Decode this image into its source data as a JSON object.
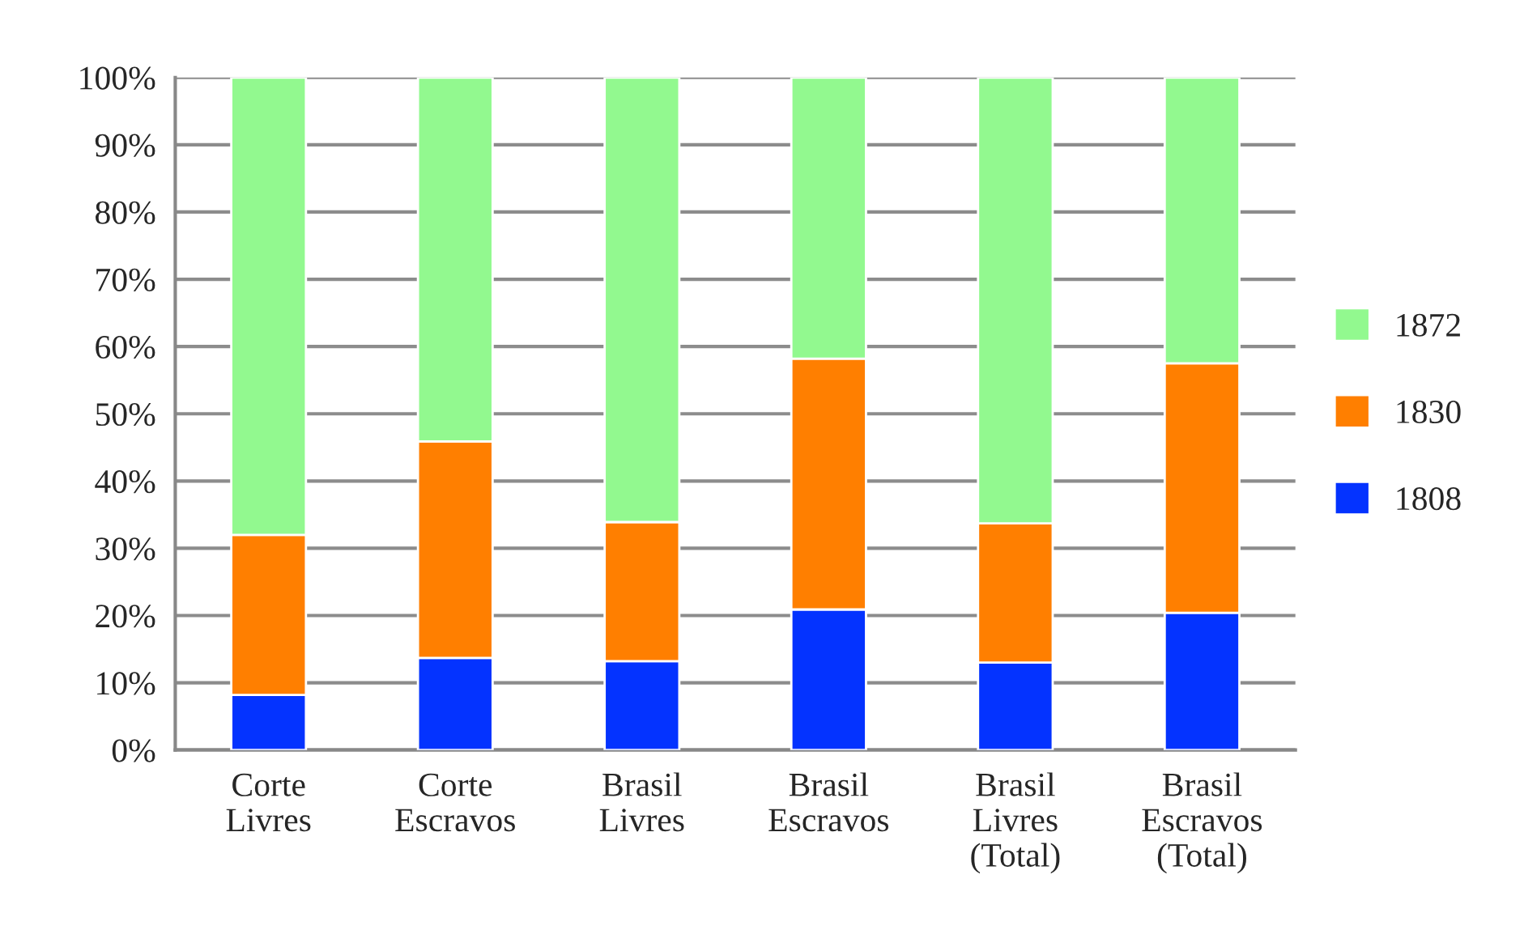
{
  "chart_data": {
    "type": "bar",
    "stacked": true,
    "categories": [
      "Corte\nLivres",
      "Corte\nEscravos",
      "Brasil\nLivres",
      "Brasil\nEscravos",
      "Brasil\nLivres\n(Total)",
      "Brasil\nEscravos\n(Total)"
    ],
    "series": [
      {
        "name": "1808",
        "color": "#0433ff",
        "values": [
          8.2,
          13.7,
          13.2,
          20.9,
          13.0,
          20.4
        ]
      },
      {
        "name": "1830",
        "color": "#ff7f00",
        "values": [
          23.8,
          32.2,
          20.7,
          37.3,
          20.7,
          37.1
        ]
      },
      {
        "name": "1872",
        "color": "#92f98f",
        "values": [
          68.0,
          54.1,
          66.1,
          41.8,
          66.3,
          42.5
        ]
      }
    ],
    "ylim": [
      0,
      100
    ],
    "yticks": [
      {
        "value": 0,
        "label": "0%"
      },
      {
        "value": 10,
        "label": "10%"
      },
      {
        "value": 20,
        "label": "20%"
      },
      {
        "value": 30,
        "label": "30%"
      },
      {
        "value": 40,
        "label": "40%"
      },
      {
        "value": 50,
        "label": "50%"
      },
      {
        "value": 60,
        "label": "60%"
      },
      {
        "value": 70,
        "label": "70%"
      },
      {
        "value": 80,
        "label": "80%"
      },
      {
        "value": 90,
        "label": "90%"
      },
      {
        "value": 100,
        "label": "100%"
      }
    ],
    "grid": "y",
    "legend": "right"
  }
}
